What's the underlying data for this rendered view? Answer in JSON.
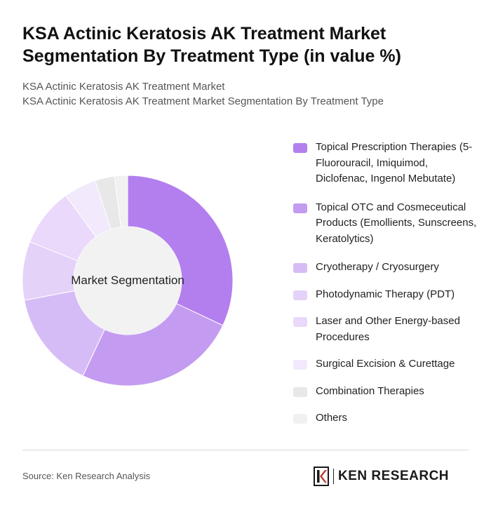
{
  "header": {
    "title": "KSA Actinic Keratosis AK Treatment Market Segmentation By Treatment Type (in value %)",
    "subtitle_1": "KSA Actinic Keratosis AK Treatment Market",
    "subtitle_2": "KSA Actinic Keratosis AK Treatment Market Segmentation By Treatment Type"
  },
  "chart_data": {
    "type": "pie",
    "variant": "donut",
    "center_label": "Market Segmentation",
    "slices": [
      {
        "label": "Topical Prescription Therapies (5-Fluorouracil, Imiquimod, Diclofenac, Ingenol Mebutate)",
        "value": 32,
        "color": "#b37fee"
      },
      {
        "label": "Topical OTC and Cosmeceutical Products (Emollients, Sunscreens, Keratolytics)",
        "value": 25,
        "color": "#c39cf1"
      },
      {
        "label": "Cryotherapy / Cryosurgery",
        "value": 15,
        "color": "#d6bcf6"
      },
      {
        "label": "Photodynamic Therapy (PDT)",
        "value": 9,
        "color": "#e4d2f9"
      },
      {
        "label": "Laser and Other Energy-based Procedures",
        "value": 9,
        "color": "#ead9fa"
      },
      {
        "label": "Surgical Excision & Curettage",
        "value": 5,
        "color": "#f2e9fc"
      },
      {
        "label": "Combination Therapies",
        "value": 3,
        "color": "#e8e8e8"
      },
      {
        "label": "Others",
        "value": 2,
        "color": "#f1f1f1"
      }
    ],
    "legend_position": "right"
  },
  "footer": {
    "source": "Source: Ken Research Analysis",
    "logo_text": "KEN RESEARCH"
  }
}
